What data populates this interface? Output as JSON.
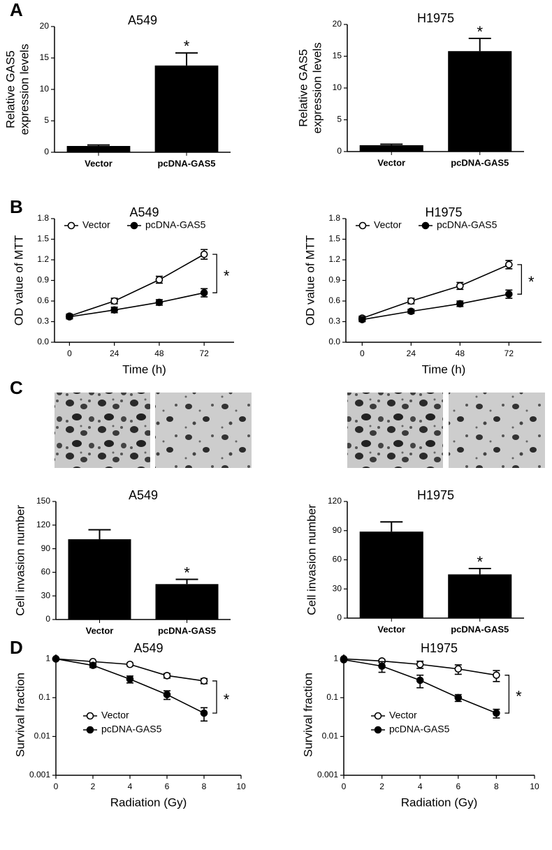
{
  "panels": [
    "A",
    "B",
    "C",
    "D"
  ],
  "chart_data": [
    {
      "type": "bar",
      "title": "A549",
      "ylabel": [
        "Relative GAS5",
        "expression levels"
      ],
      "categories": [
        "Vector",
        "pcDNA-GAS5"
      ],
      "values": [
        1,
        13.8
      ],
      "errors": [
        0.15,
        2.0
      ],
      "color": "#000000",
      "ylim": [
        0,
        20
      ],
      "yticks": [
        0,
        5,
        10,
        15,
        20
      ],
      "annotation": "*"
    },
    {
      "type": "bar",
      "title": "H1975",
      "ylabel": [
        "Relative GAS5",
        "expression levels"
      ],
      "categories": [
        "Vector",
        "pcDNA-GAS5"
      ],
      "values": [
        1,
        15.8
      ],
      "errors": [
        0.15,
        2.0
      ],
      "color": "#000000",
      "ylim": [
        0,
        20
      ],
      "yticks": [
        0,
        5,
        10,
        15,
        20
      ],
      "annotation": "*"
    },
    {
      "type": "line",
      "title": "A549",
      "xlabel": "Time (h)",
      "ylabel": [
        "OD value of MTT"
      ],
      "x": [
        0,
        24,
        48,
        72
      ],
      "series": [
        {
          "name": "Vector",
          "color": "#000000",
          "marker": "open-circle",
          "values": [
            0.38,
            0.6,
            0.91,
            1.28
          ],
          "errors": [
            0.03,
            0.04,
            0.05,
            0.07
          ]
        },
        {
          "name": "pcDNA-GAS5",
          "color": "#000000",
          "marker": "filled-circle",
          "values": [
            0.37,
            0.47,
            0.58,
            0.72
          ],
          "errors": [
            0.03,
            0.04,
            0.04,
            0.06
          ]
        }
      ],
      "xlim": [
        -8,
        88
      ],
      "xticks": [
        0,
        24,
        48,
        72
      ],
      "ylim": [
        0,
        1.8
      ],
      "yticks": [
        {
          "value": 0,
          "label": "0.0"
        },
        0.3,
        0.6,
        0.9,
        1.2,
        1.5,
        1.8
      ],
      "legend": "top",
      "annotation": "*"
    },
    {
      "type": "line",
      "title": "H1975",
      "xlabel": "Time (h)",
      "ylabel": [
        "OD value of MTT"
      ],
      "x": [
        0,
        24,
        48,
        72
      ],
      "series": [
        {
          "name": "Vector",
          "color": "#000000",
          "marker": "open-circle",
          "values": [
            0.35,
            0.6,
            0.82,
            1.13
          ],
          "errors": [
            0.03,
            0.04,
            0.05,
            0.06
          ]
        },
        {
          "name": "pcDNA-GAS5",
          "color": "#000000",
          "marker": "filled-circle",
          "values": [
            0.33,
            0.45,
            0.56,
            0.7
          ],
          "errors": [
            0.03,
            0.03,
            0.04,
            0.06
          ]
        }
      ],
      "xlim": [
        -8,
        88
      ],
      "xticks": [
        0,
        24,
        48,
        72
      ],
      "ylim": [
        0,
        1.8
      ],
      "yticks": [
        {
          "value": 0,
          "label": "0.0"
        },
        0.3,
        0.6,
        0.9,
        1.2,
        1.5,
        1.8
      ],
      "legend": "top",
      "annotation": "*"
    },
    {
      "type": "bar",
      "title": "A549",
      "ylabel": [
        "Cell invasion number"
      ],
      "categories": [
        "Vector",
        "pcDNA-GAS5"
      ],
      "values": [
        102,
        45
      ],
      "errors": [
        12,
        6
      ],
      "color": "#000000",
      "ylim": [
        0,
        150
      ],
      "yticks": [
        0,
        30,
        60,
        90,
        120,
        150
      ],
      "annotation": "*"
    },
    {
      "type": "bar",
      "title": "H1975",
      "ylabel": [
        "Cell invasion number"
      ],
      "categories": [
        "Vector",
        "pcDNA-GAS5"
      ],
      "values": [
        89,
        45
      ],
      "errors": [
        10,
        6
      ],
      "color": "#000000",
      "ylim": [
        0,
        120
      ],
      "yticks": [
        0,
        30,
        60,
        90,
        120
      ],
      "annotation": "*"
    },
    {
      "type": "line",
      "title": "A549",
      "xlabel": "Radiation (Gy)",
      "ylabel": [
        "Survival fraction"
      ],
      "log_y": true,
      "x": [
        0,
        2,
        4,
        6,
        8
      ],
      "series": [
        {
          "name": "Vector",
          "color": "#000000",
          "marker": "open-circle",
          "values": [
            1,
            0.85,
            0.72,
            0.37,
            0.27
          ],
          "errors": [
            0.03,
            0.05,
            0.06,
            0.05,
            0.04
          ]
        },
        {
          "name": "pcDNA-GAS5",
          "color": "#000000",
          "marker": "filled-circle",
          "values": [
            1,
            0.68,
            0.3,
            0.12,
            0.04
          ],
          "errors": [
            0.03,
            0.08,
            0.06,
            0.03,
            0.015
          ]
        }
      ],
      "xlim": [
        0,
        10
      ],
      "xticks": [
        0,
        2,
        4,
        6,
        8,
        10
      ],
      "ylim": [
        0.001,
        1.3
      ],
      "yticks": [
        0.001,
        0.01,
        0.1,
        1
      ],
      "legend": "lower left",
      "annotation": "*"
    },
    {
      "type": "line",
      "title": "H1975",
      "xlabel": "Radiation (Gy)",
      "ylabel": [
        "Survival fraction"
      ],
      "log_y": true,
      "x": [
        0,
        2,
        4,
        6,
        8
      ],
      "series": [
        {
          "name": "Vector",
          "color": "#000000",
          "marker": "open-circle",
          "values": [
            1,
            0.88,
            0.72,
            0.55,
            0.38
          ],
          "errors": [
            0.03,
            0.08,
            0.15,
            0.15,
            0.12
          ]
        },
        {
          "name": "pcDNA-GAS5",
          "color": "#000000",
          "marker": "filled-circle",
          "values": [
            0.95,
            0.65,
            0.28,
            0.1,
            0.04
          ],
          "errors": [
            0.05,
            0.2,
            0.1,
            0.02,
            0.01
          ]
        }
      ],
      "xlim": [
        0,
        10
      ],
      "xticks": [
        0,
        2,
        4,
        6,
        8,
        10
      ],
      "ylim": [
        0.001,
        1.3
      ],
      "yticks": [
        0.001,
        0.01,
        0.1,
        1
      ],
      "legend": "lower left",
      "annotation": "*"
    }
  ]
}
